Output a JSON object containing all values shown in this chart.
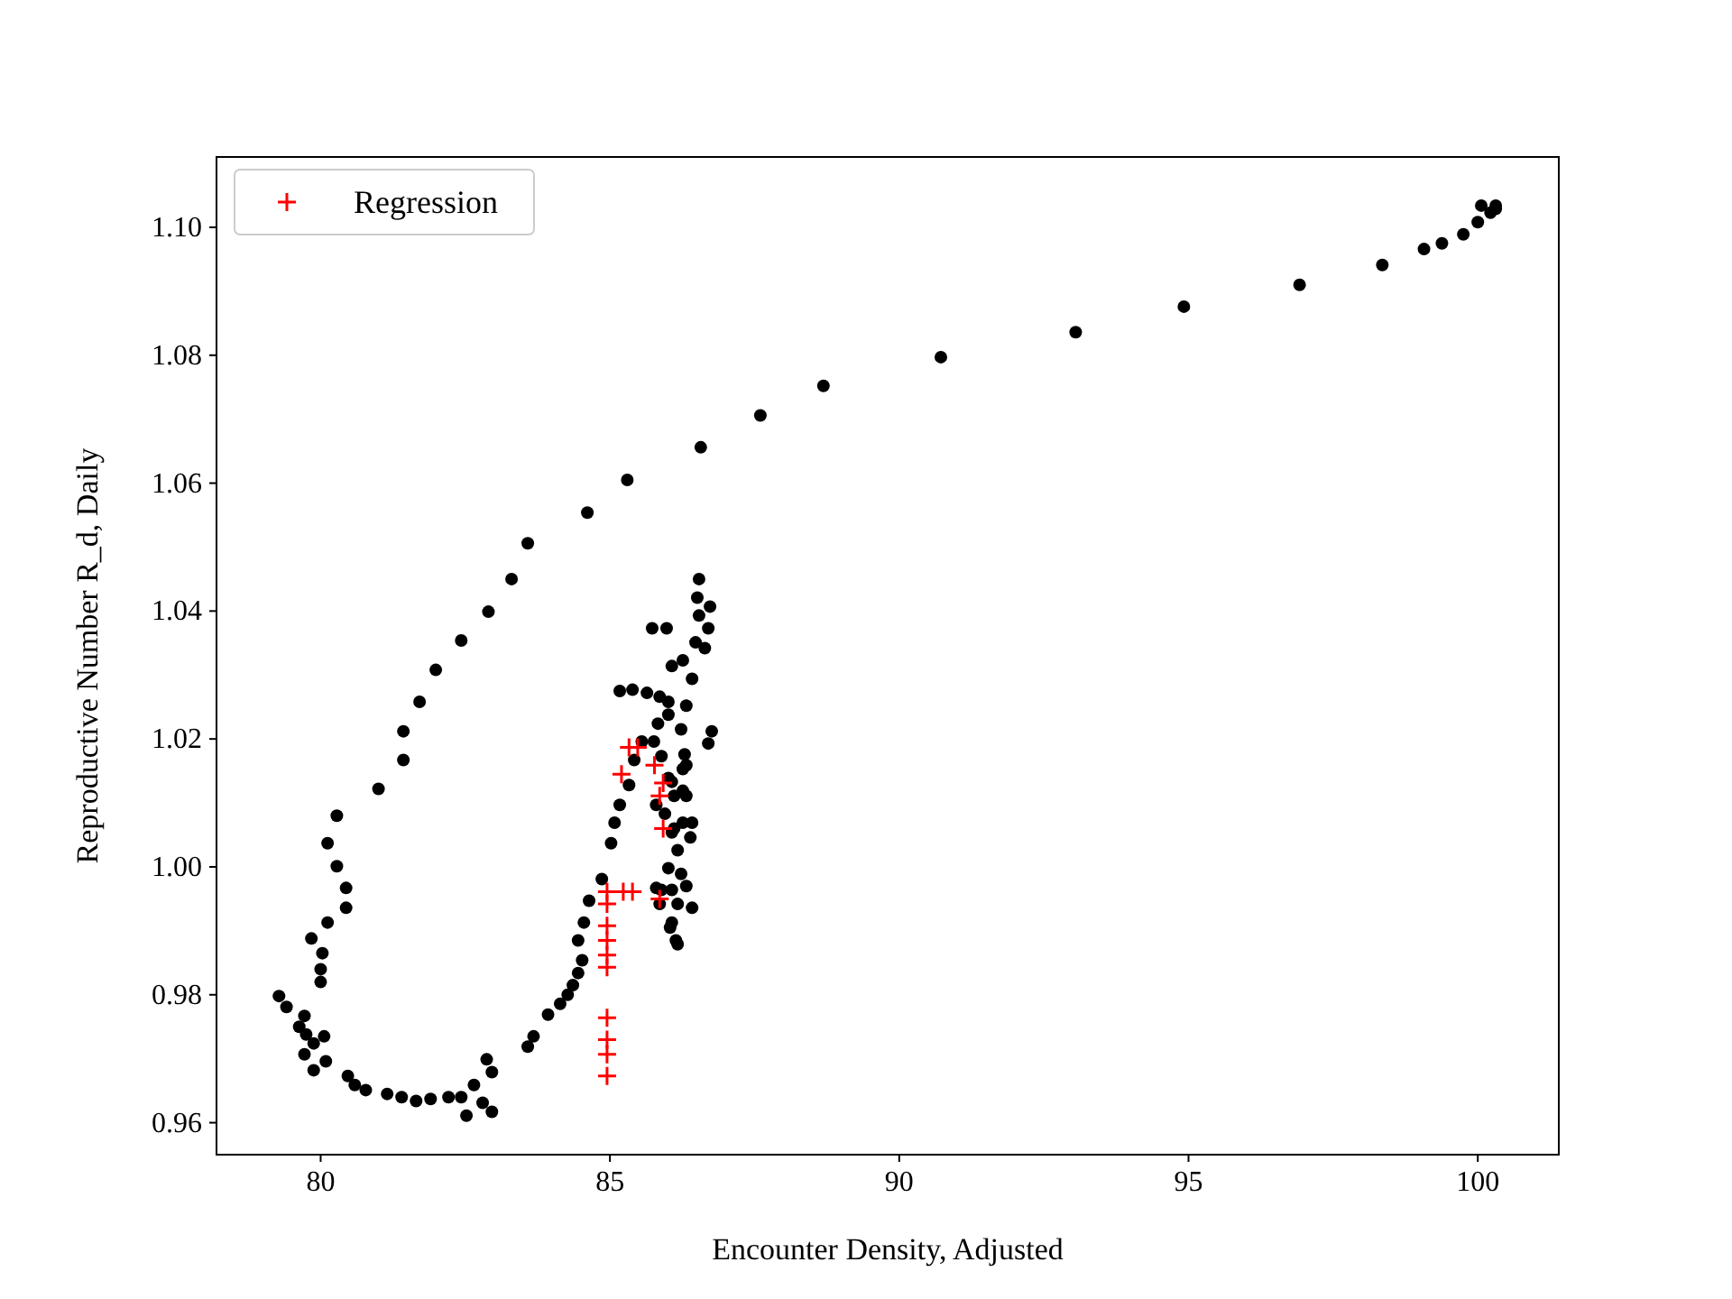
{
  "chart_data": {
    "type": "scatter",
    "xlabel": "Encounter Density, Adjusted",
    "ylabel": "Reproductive Number R_d, Daily",
    "xlim": [
      78.2,
      101.4
    ],
    "ylim": [
      0.955,
      1.111
    ],
    "xticks": [
      80,
      85,
      90,
      95,
      100
    ],
    "yticks": [
      {
        "value": 0.96,
        "label": "0.96"
      },
      {
        "value": 0.98,
        "label": "0.98"
      },
      {
        "value": 1.0,
        "label": "1.00"
      },
      {
        "value": 1.02,
        "label": "1.02"
      },
      {
        "value": 1.04,
        "label": "1.04"
      },
      {
        "value": 1.06,
        "label": "1.06"
      },
      {
        "value": 1.08,
        "label": "1.08"
      },
      {
        "value": 1.1,
        "label": "1.10"
      }
    ],
    "grid": false,
    "legend": "top left",
    "series": [
      {
        "color": "#000000",
        "marker": "circle",
        "x": [
          100.0,
          100.06,
          100.31,
          100.22,
          100.31,
          99.75,
          99.38,
          99.07,
          98.35,
          96.92,
          94.92,
          93.05,
          90.72,
          88.69,
          87.6,
          86.57,
          85.3,
          84.61,
          83.58,
          83.3,
          82.9,
          82.43,
          81.99,
          81.71,
          81.43,
          81.43,
          81.0,
          80.28,
          80.12,
          80.28,
          80.44,
          80.44,
          80.12,
          79.84,
          80.03,
          80.0,
          80.0,
          79.28,
          79.41,
          79.72,
          79.63,
          79.75,
          80.06,
          79.88,
          79.72,
          80.09,
          79.88,
          80.47,
          80.59,
          80.78,
          81.15,
          81.4,
          81.65,
          81.9,
          82.21,
          82.43,
          82.65,
          82.87,
          82.96,
          82.8,
          82.96,
          82.52,
          83.58,
          83.68,
          83.93,
          84.14,
          84.27,
          84.36,
          84.45,
          84.52,
          84.45,
          84.55,
          84.64,
          84.86,
          85.02,
          85.08,
          85.17,
          85.33,
          85.42,
          85.55,
          85.17,
          85.39,
          85.64,
          85.86,
          86.01,
          86.01,
          85.83,
          85.76,
          85.89,
          86.01,
          86.11,
          85.95,
          86.07,
          86.17,
          86.01,
          86.07,
          86.17,
          86.07,
          86.14,
          85.89,
          86.26,
          86.32,
          86.26,
          86.23,
          86.32,
          86.42,
          86.26,
          86.07,
          85.73,
          85.98,
          86.48,
          86.54,
          86.51,
          86.54,
          86.73,
          86.7,
          86.64,
          86.76,
          86.7,
          86.29,
          86.32,
          86.26,
          86.42,
          86.39,
          86.32,
          86.42,
          86.17,
          86.04,
          85.86,
          85.8,
          86.11,
          85.8,
          86.07,
          86.23
        ],
        "values": [
          1.1008,
          1.1034,
          1.1034,
          1.1023,
          1.1029,
          1.0989,
          1.0975,
          1.0966,
          1.0941,
          1.091,
          1.0876,
          1.0836,
          1.0797,
          1.0752,
          1.0706,
          1.0656,
          1.0605,
          1.0554,
          1.0506,
          1.045,
          1.0399,
          1.0354,
          1.0308,
          1.0258,
          1.0212,
          1.0167,
          1.0122,
          1.008,
          1.0037,
          1.0001,
          0.9967,
          0.9936,
          0.9913,
          0.9888,
          0.9865,
          0.984,
          0.982,
          0.9798,
          0.9781,
          0.9767,
          0.975,
          0.9738,
          0.9735,
          0.9724,
          0.9707,
          0.9696,
          0.9682,
          0.9673,
          0.9659,
          0.9651,
          0.9645,
          0.964,
          0.9634,
          0.9637,
          0.964,
          0.964,
          0.9659,
          0.9699,
          0.9679,
          0.9631,
          0.9617,
          0.9611,
          0.9719,
          0.9735,
          0.9769,
          0.9786,
          0.98,
          0.9815,
          0.9834,
          0.9854,
          0.9885,
          0.9913,
          0.9947,
          0.9981,
          1.0037,
          1.0069,
          1.0097,
          1.0128,
          1.0167,
          1.0196,
          1.0275,
          1.0277,
          1.0272,
          1.0266,
          1.0258,
          1.0238,
          1.0224,
          1.0196,
          1.0173,
          1.0139,
          1.0111,
          1.0083,
          1.0054,
          1.0026,
          0.9998,
          0.9964,
          0.9942,
          0.9913,
          0.9885,
          0.9964,
          1.0069,
          1.0111,
          1.0153,
          1.0215,
          1.0252,
          1.0294,
          1.0323,
          1.0314,
          1.0373,
          1.0373,
          1.0351,
          1.0393,
          1.0421,
          1.045,
          1.0407,
          1.0373,
          1.0342,
          1.0212,
          1.0193,
          1.0176,
          1.0159,
          1.0119,
          1.0069,
          1.0046,
          0.997,
          0.9936,
          0.9879,
          0.9905,
          0.9942,
          0.9967,
          1.006,
          1.0097,
          1.0133,
          0.9989
        ]
      },
      {
        "name": "Regression",
        "color": "#ff0000",
        "marker": "cross",
        "x": [
          85.33,
          85.48,
          85.2,
          84.95,
          85.23,
          85.39,
          85.86,
          84.95,
          84.95,
          84.95,
          84.95,
          84.95,
          84.95,
          84.95,
          84.95,
          84.95,
          85.92,
          85.86,
          85.92,
          85.77
        ],
        "values": [
          1.0187,
          1.0187,
          1.0145,
          0.9961,
          0.9961,
          0.9961,
          0.995,
          0.9942,
          0.9908,
          0.9885,
          0.9862,
          0.9843,
          0.9764,
          0.973,
          0.9707,
          0.9673,
          1.006,
          1.0111,
          1.0131,
          1.0159
        ]
      }
    ]
  }
}
